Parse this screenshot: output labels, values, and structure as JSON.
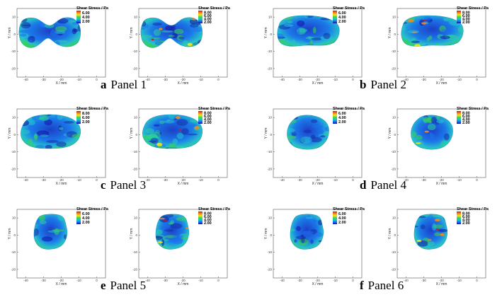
{
  "x_axis_label": "X / mm",
  "y_axis_label": "Y / mm",
  "x_ticks": [
    "-40",
    "-30",
    "-20",
    "-10",
    "0"
  ],
  "y_ticks": [
    "10",
    "0",
    "-10",
    "-20"
  ],
  "colorbar": {
    "title": "Shear Stress / Pa",
    "colors": [
      "#d0181c",
      "#f28a1e",
      "#f6e61a",
      "#3bd64a",
      "#1ec8c8",
      "#1b6ff0",
      "#1410a8"
    ]
  },
  "panels": [
    {
      "letter": "a",
      "label": "Panel 1",
      "plots": [
        {
          "cb": [
            "6.00",
            "4.00",
            "2.00"
          ],
          "shape": "peanut"
        },
        {
          "cb": [
            "8.00",
            "6.00",
            "4.00",
            "2.00"
          ],
          "shape": "peanut"
        }
      ]
    },
    {
      "letter": "b",
      "label": "Panel 2",
      "plots": [
        {
          "cb": [
            "6.00",
            "4.00",
            "2.00"
          ],
          "shape": "bean"
        },
        {
          "cb": [
            "8.00",
            "6.00",
            "4.00",
            "2.00"
          ],
          "shape": "bean"
        }
      ]
    },
    {
      "letter": "c",
      "label": "Panel 3",
      "plots": [
        {
          "cb": [
            "8.00",
            "6.00",
            "2.00"
          ],
          "shape": "oval"
        },
        {
          "cb": [
            "8.00",
            "6.00",
            "4.00",
            "2.00"
          ],
          "shape": "oval"
        }
      ]
    },
    {
      "letter": "d",
      "label": "Panel 4",
      "plots": [
        {
          "cb": [
            "6.00",
            "4.00",
            "2.00"
          ],
          "shape": "round"
        },
        {
          "cb": [
            "8.00",
            "6.00",
            "4.00",
            "2.00"
          ],
          "shape": "round"
        }
      ]
    },
    {
      "letter": "e",
      "label": "Panel 5",
      "plots": [
        {
          "cb": [
            "6.00",
            "4.00",
            "2.00"
          ],
          "shape": "blob"
        },
        {
          "cb": [
            "8.00",
            "6.00",
            "4.00",
            "2.00"
          ],
          "shape": "blob"
        }
      ]
    },
    {
      "letter": "f",
      "label": "Panel 6",
      "plots": [
        {
          "cb": [
            "6.00",
            "4.00",
            "2.00"
          ],
          "shape": "blob"
        },
        {
          "cb": [
            "8.00",
            "6.00",
            "4.00",
            "2.00"
          ],
          "shape": "blob"
        }
      ]
    }
  ]
}
